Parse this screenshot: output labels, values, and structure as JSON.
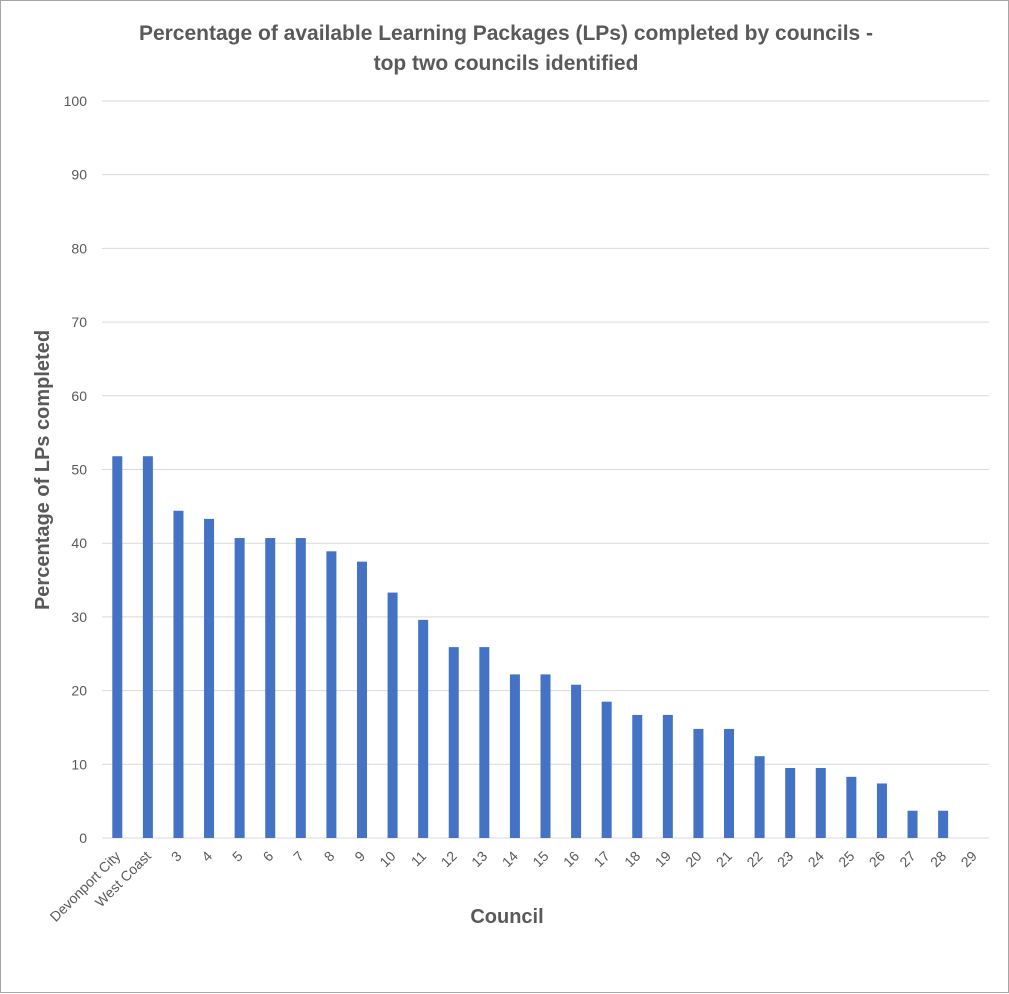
{
  "chart_data": {
    "type": "bar",
    "title_lines": [
      "Percentage of available Learning Packages (LPs) completed by councils -",
      "top two councils identified"
    ],
    "xlabel": "Council",
    "ylabel": "Percentage of LPs completed",
    "ylim": [
      0,
      100
    ],
    "y_ticks": [
      0,
      10,
      20,
      30,
      40,
      50,
      60,
      70,
      80,
      90,
      100
    ],
    "grid": true,
    "legend": "none",
    "bar_color": "#4472c4",
    "categories": [
      "Devonport City",
      "West Coast",
      "3",
      "4",
      "5",
      "6",
      "7",
      "8",
      "9",
      "10",
      "11",
      "12",
      "13",
      "14",
      "15",
      "16",
      "17",
      "18",
      "19",
      "20",
      "21",
      "22",
      "23",
      "24",
      "25",
      "26",
      "27",
      "28",
      "29"
    ],
    "values": [
      51.8,
      51.8,
      44.4,
      43.3,
      40.7,
      40.7,
      40.7,
      38.9,
      37.5,
      33.3,
      29.6,
      25.9,
      25.9,
      22.2,
      22.2,
      20.8,
      18.5,
      16.7,
      16.7,
      14.8,
      14.8,
      11.1,
      9.5,
      9.5,
      8.3,
      7.4,
      3.7,
      3.7,
      0
    ]
  }
}
